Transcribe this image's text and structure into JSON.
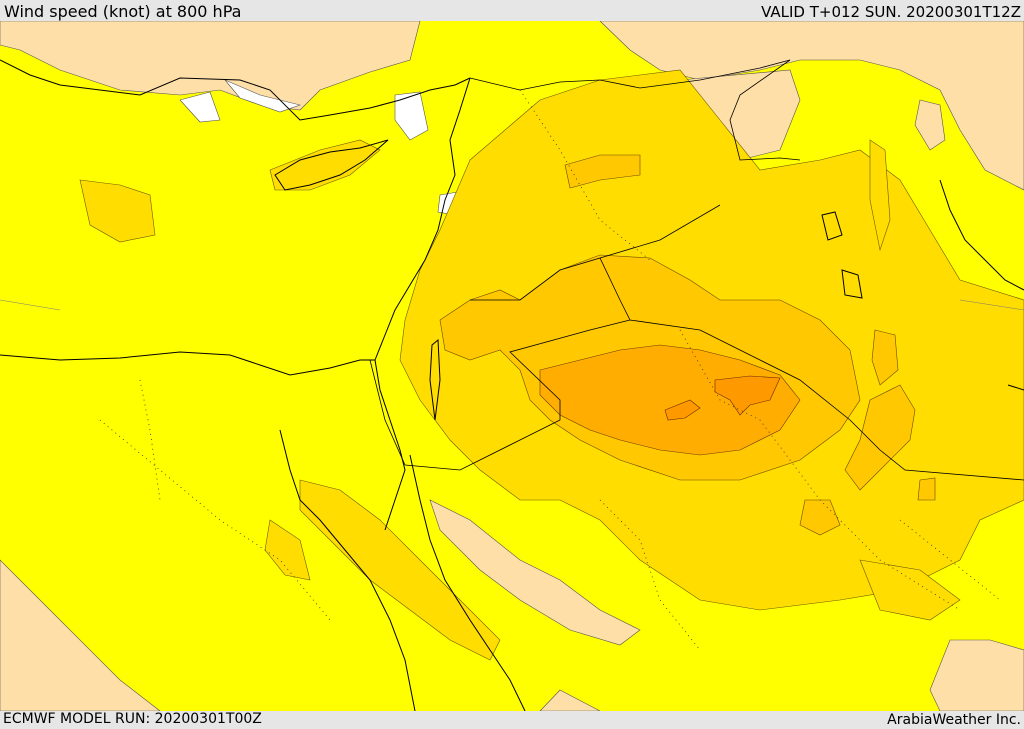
{
  "header": {
    "title": "Wind speed (knot) at 800 hPa",
    "valid": "VALID T+012 SUN. 20200301T12Z"
  },
  "footer": {
    "model_run": "ECMWF MODEL RUN: 20200301T00Z",
    "credit": "ArabiaWeather Inc."
  },
  "colors": {
    "low": "#ffdfa8",
    "calm": "#ffffff",
    "mid": "#ffff00",
    "high": "#ffdd00",
    "higher": "#ffc800",
    "highest": "#ffad00",
    "peak": "#ff9900",
    "bars": "#e6e6e6"
  }
}
